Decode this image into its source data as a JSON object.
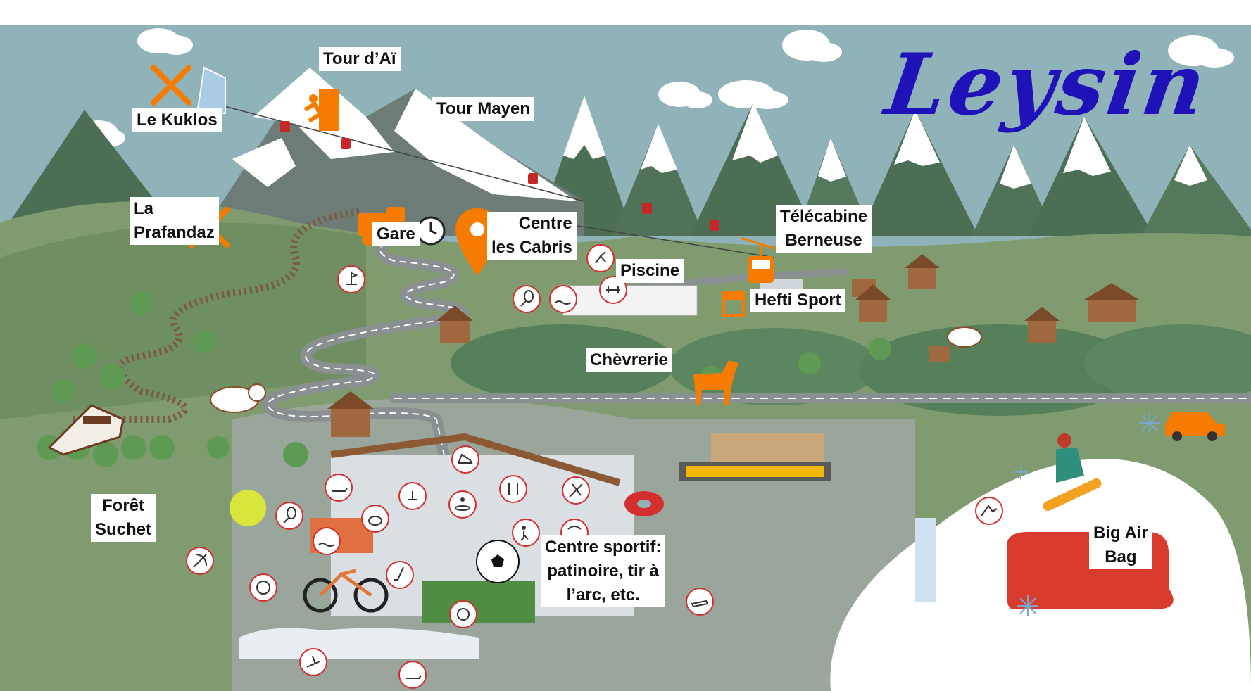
{
  "map_title": "Leysin",
  "colors": {
    "sky": "#8fb3b8",
    "mountain_dark": "#4c6e55",
    "snow": "#ffffff",
    "meadow": "#7f9b6f",
    "meadow_dark": "#55805a",
    "road": "#8a8f92",
    "accent_orange": "#f57c00",
    "title_blue": "#1e12b8",
    "icon_border": "#d32f2f"
  },
  "places": [
    {
      "id": "le-kuklos",
      "lines": [
        "Le Kuklos"
      ],
      "icon": "restaurant-icon"
    },
    {
      "id": "tour-dai",
      "lines": [
        "Tour d’Aï"
      ],
      "icon": "climbing-icon"
    },
    {
      "id": "tour-mayen",
      "lines": [
        "Tour Mayen"
      ]
    },
    {
      "id": "la-prafandaz",
      "lines": [
        "La",
        "Prafandaz"
      ],
      "icon": "restaurant-icon"
    },
    {
      "id": "gare",
      "lines": [
        "Gare"
      ],
      "icon": "train-icon"
    },
    {
      "id": "centre-les-cabris",
      "lines": [
        "Centre",
        "les Cabris"
      ],
      "icon": "location-pin-icon"
    },
    {
      "id": "telecabine-berneuse",
      "lines": [
        "Télécabine",
        "Berneuse"
      ],
      "icon": "gondola-icon"
    },
    {
      "id": "piscine",
      "lines": [
        "Piscine"
      ]
    },
    {
      "id": "hefti-sport",
      "lines": [
        "Hefti Sport"
      ],
      "icon": "shop-icon"
    },
    {
      "id": "chevrerie",
      "lines": [
        "Chèvrerie"
      ],
      "icon": "goat-icon"
    },
    {
      "id": "foret-suchet",
      "lines": [
        "Forêt",
        "Suchet"
      ]
    },
    {
      "id": "centre-sportif",
      "lines": [
        "Centre sportif:",
        "patinoire, tir à",
        "l’arc, etc."
      ]
    },
    {
      "id": "big-air-bag",
      "lines": [
        "Big Air",
        "Bag"
      ]
    }
  ],
  "activity_icons": [
    "mini-golf-icon",
    "climbing-icon",
    "tennis-icon",
    "swimming-icon",
    "fitness-icon",
    "archery-icon",
    "volleyball-icon",
    "ice-skating-icon",
    "curling-icon",
    "trampoline-icon",
    "restaurant-icon",
    "ski-icon",
    "hockey-icon",
    "football-icon",
    "bob-luge-icon",
    "paragliding-icon",
    "snowpark-icon",
    "sledding-icon",
    "hiking-icon",
    "cycling-icon"
  ]
}
